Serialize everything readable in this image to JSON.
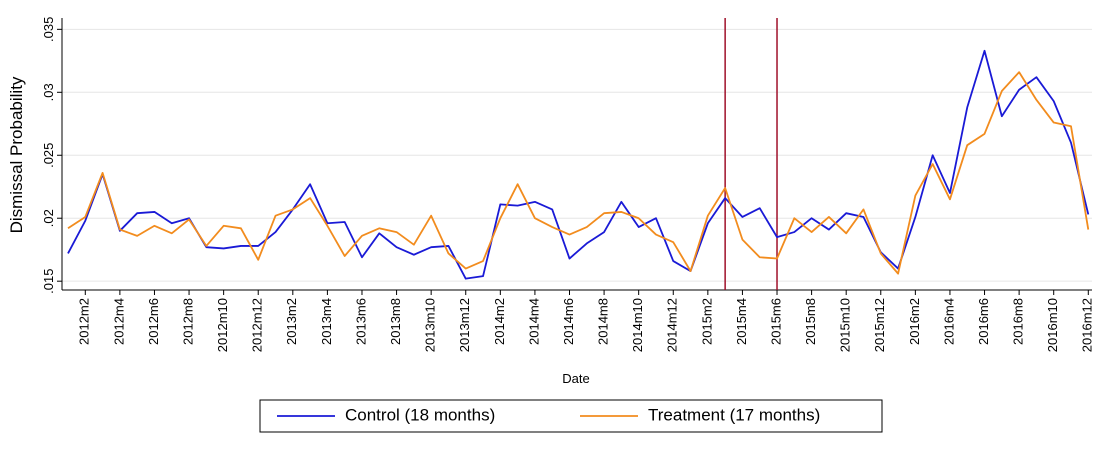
{
  "chart_data": {
    "type": "line",
    "y_label": "Dismissal Probability",
    "x_label": "Date",
    "categories": [
      null,
      "2012m2",
      null,
      "2012m4",
      null,
      "2012m6",
      null,
      "2012m8",
      null,
      "2012m10",
      null,
      "2012m12",
      null,
      "2013m2",
      null,
      "2013m4",
      null,
      "2013m6",
      null,
      "2013m8",
      null,
      "2013m10",
      null,
      "2013m12",
      null,
      "2014m2",
      null,
      "2014m4",
      null,
      "2014m6",
      null,
      "2014m8",
      null,
      "2014m10",
      null,
      "2014m12",
      null,
      "2015m2",
      null,
      "2015m4",
      null,
      "2015m6",
      null,
      "2015m8",
      null,
      "2015m10",
      null,
      "2015m12",
      null,
      "2016m2",
      null,
      "2016m4",
      null,
      "2016m6",
      null,
      "2016m8",
      null,
      "2016m10",
      null,
      "2016m12"
    ],
    "series": [
      {
        "name": "Control (18 months)",
        "color": "#1a1ad6",
        "values": [
          0.0172,
          0.0198,
          0.0235,
          0.019,
          0.0204,
          0.0205,
          0.0196,
          0.02,
          0.0177,
          0.0176,
          0.0178,
          0.0178,
          0.0189,
          0.0207,
          0.0227,
          0.0196,
          0.0197,
          0.0169,
          0.0188,
          0.0177,
          0.0171,
          0.0177,
          0.0178,
          0.0152,
          0.0154,
          0.0211,
          0.021,
          0.0213,
          0.0207,
          0.0168,
          0.018,
          0.0189,
          0.0213,
          0.0193,
          0.02,
          0.0166,
          0.0158,
          0.0196,
          0.0216,
          0.0201,
          0.0208,
          0.0185,
          0.0189,
          0.02,
          0.0191,
          0.0204,
          0.0201,
          0.0173,
          0.016,
          0.0201,
          0.025,
          0.022,
          0.0288,
          0.0333,
          0.0281,
          0.0302,
          0.0312,
          0.0293,
          0.026,
          0.0203
        ]
      },
      {
        "name": "Treatment (17 months)",
        "color": "#f28c1e",
        "values": [
          0.0192,
          0.0201,
          0.0236,
          0.0191,
          0.0186,
          0.0194,
          0.0188,
          0.0199,
          0.0178,
          0.0194,
          0.0192,
          0.0167,
          0.0202,
          0.0207,
          0.0216,
          0.0194,
          0.017,
          0.0186,
          0.0192,
          0.0189,
          0.0179,
          0.0202,
          0.0172,
          0.016,
          0.0166,
          0.02,
          0.0227,
          0.02,
          0.0193,
          0.0187,
          0.0193,
          0.0204,
          0.0205,
          0.02,
          0.0187,
          0.0181,
          0.0158,
          0.0202,
          0.0224,
          0.0183,
          0.0169,
          0.0168,
          0.02,
          0.0189,
          0.0201,
          0.0188,
          0.0207,
          0.0172,
          0.0156,
          0.0218,
          0.0243,
          0.0215,
          0.0258,
          0.0267,
          0.0301,
          0.0316,
          0.0294,
          0.0276,
          0.0273,
          0.0191
        ]
      }
    ],
    "ylim": [
      0.0143,
      0.0359
    ],
    "yticks": [
      {
        "value": 0.015,
        "label": ".015"
      },
      {
        "value": 0.02,
        "label": ".02"
      },
      {
        "value": 0.025,
        "label": ".025"
      },
      {
        "value": 0.03,
        "label": ".03"
      },
      {
        "value": 0.035,
        "label": ".035"
      }
    ],
    "grid": true,
    "vlines": [
      38,
      41
    ],
    "vline_color": "#a0102a",
    "legend": "bottom"
  }
}
